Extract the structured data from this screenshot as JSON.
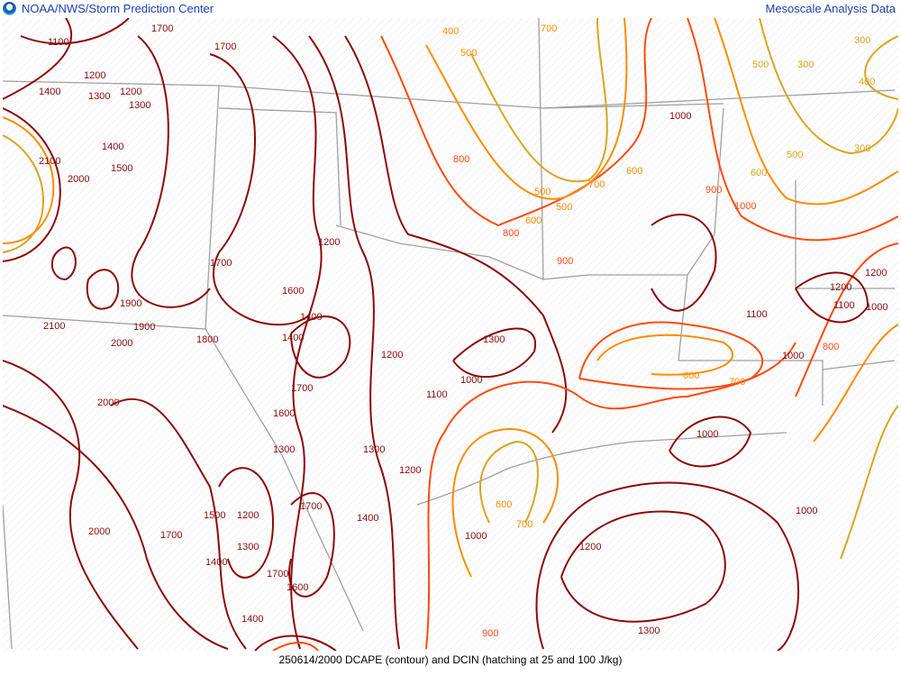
{
  "header": {
    "title": "NOAA/NWS/Storm Prediction Center",
    "right_title": "Mesoscale Analysis Data",
    "logo": "noaa-logo"
  },
  "footer": {
    "caption": "250614/2000 DCAPE (contour) and DCIN (hatching at 25 and 100 J/kg)"
  },
  "colors": {
    "high": "#8b0a0a",
    "mid": "#ff4a10",
    "low": "#ff8c00",
    "lowest": "#d9a520",
    "borders": "#9a9a9a",
    "hatch": "#e4e4e4"
  },
  "contour_labels": [
    "1100",
    "1700",
    "1700",
    "1200",
    "1300",
    "1200",
    "1400",
    "1300",
    "1400",
    "1500",
    "2100",
    "2000",
    "2100",
    "1900",
    "2000",
    "1900",
    "2000",
    "1800",
    "1700",
    "1600",
    "1400",
    "1400",
    "1600",
    "1700",
    "1200",
    "1200",
    "1300",
    "1000",
    "1100",
    "1300",
    "1200",
    "1300",
    "1400",
    "1500",
    "1200",
    "1300",
    "1400",
    "1700",
    "1600",
    "1400",
    "1700",
    "2000",
    "1700",
    "400",
    "500",
    "700",
    "500",
    "800",
    "600",
    "500",
    "700",
    "600",
    "800",
    "900",
    "1000",
    "900",
    "1000",
    "500",
    "300",
    "300",
    "400",
    "500",
    "300",
    "600",
    "1200",
    "1100",
    "1200",
    "1100",
    "1000",
    "1000",
    "800",
    "600",
    "700",
    "1000",
    "600",
    "700",
    "1000",
    "1200",
    "1300",
    "900",
    "1000"
  ]
}
